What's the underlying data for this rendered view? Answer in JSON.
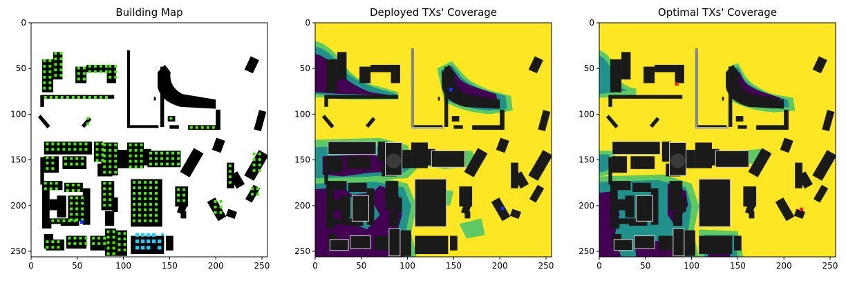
{
  "figure": {
    "panels": [
      {
        "title": "Building Map"
      },
      {
        "title": "Deployed TXs' Coverage"
      },
      {
        "title": "Optimal TXs' Coverage"
      }
    ]
  },
  "chart_data": [
    {
      "type": "heatmap",
      "title": "Building Map",
      "xlabel": "",
      "ylabel": "",
      "xlim": [
        0,
        256
      ],
      "ylim": [
        256,
        0
      ],
      "xticks": [
        0,
        50,
        100,
        150,
        200,
        250
      ],
      "yticks": [
        0,
        50,
        100,
        150,
        200,
        250
      ],
      "colors": {
        "background": "#ffffff",
        "building": "#000000",
        "grid_points": "#44ee00",
        "highlight_points": "#22ccff",
        "tx_marker": "#1030ff"
      },
      "tx_markers": [
        {
          "x": 55,
          "y": 218,
          "color": "#1030ff"
        }
      ]
    },
    {
      "type": "heatmap",
      "title": "Deployed TXs' Coverage",
      "xlabel": "",
      "ylabel": "",
      "xlim": [
        0,
        256
      ],
      "ylim": [
        256,
        0
      ],
      "xticks": [
        0,
        50,
        100,
        150,
        200,
        250
      ],
      "yticks": [
        0,
        50,
        100,
        150,
        200,
        250
      ],
      "colors": {
        "covered": "#fde725",
        "edge_1": "#5ec962",
        "edge_2": "#21918c",
        "uncovered": "#440154",
        "building": "#1a1a1a"
      },
      "tx_markers": [
        {
          "x": 147,
          "y": 73,
          "color": "#1030ff"
        },
        {
          "x": 203,
          "y": 203,
          "color": "#1030ff"
        }
      ]
    },
    {
      "type": "heatmap",
      "title": "Optimal TXs' Coverage",
      "xlabel": "",
      "ylabel": "",
      "xlim": [
        0,
        256
      ],
      "ylim": [
        256,
        0
      ],
      "xticks": [
        0,
        50,
        100,
        150,
        200,
        250
      ],
      "yticks": [
        0,
        50,
        100,
        150,
        200,
        250
      ],
      "colors": {
        "covered": "#fde725",
        "edge_1": "#5ec962",
        "edge_2": "#21918c",
        "uncovered": "#440154",
        "building": "#1a1a1a"
      },
      "tx_markers": [
        {
          "x": 84,
          "y": 67,
          "color": "#ff2020"
        },
        {
          "x": 219,
          "y": 204,
          "color": "#ff2020"
        }
      ]
    }
  ]
}
